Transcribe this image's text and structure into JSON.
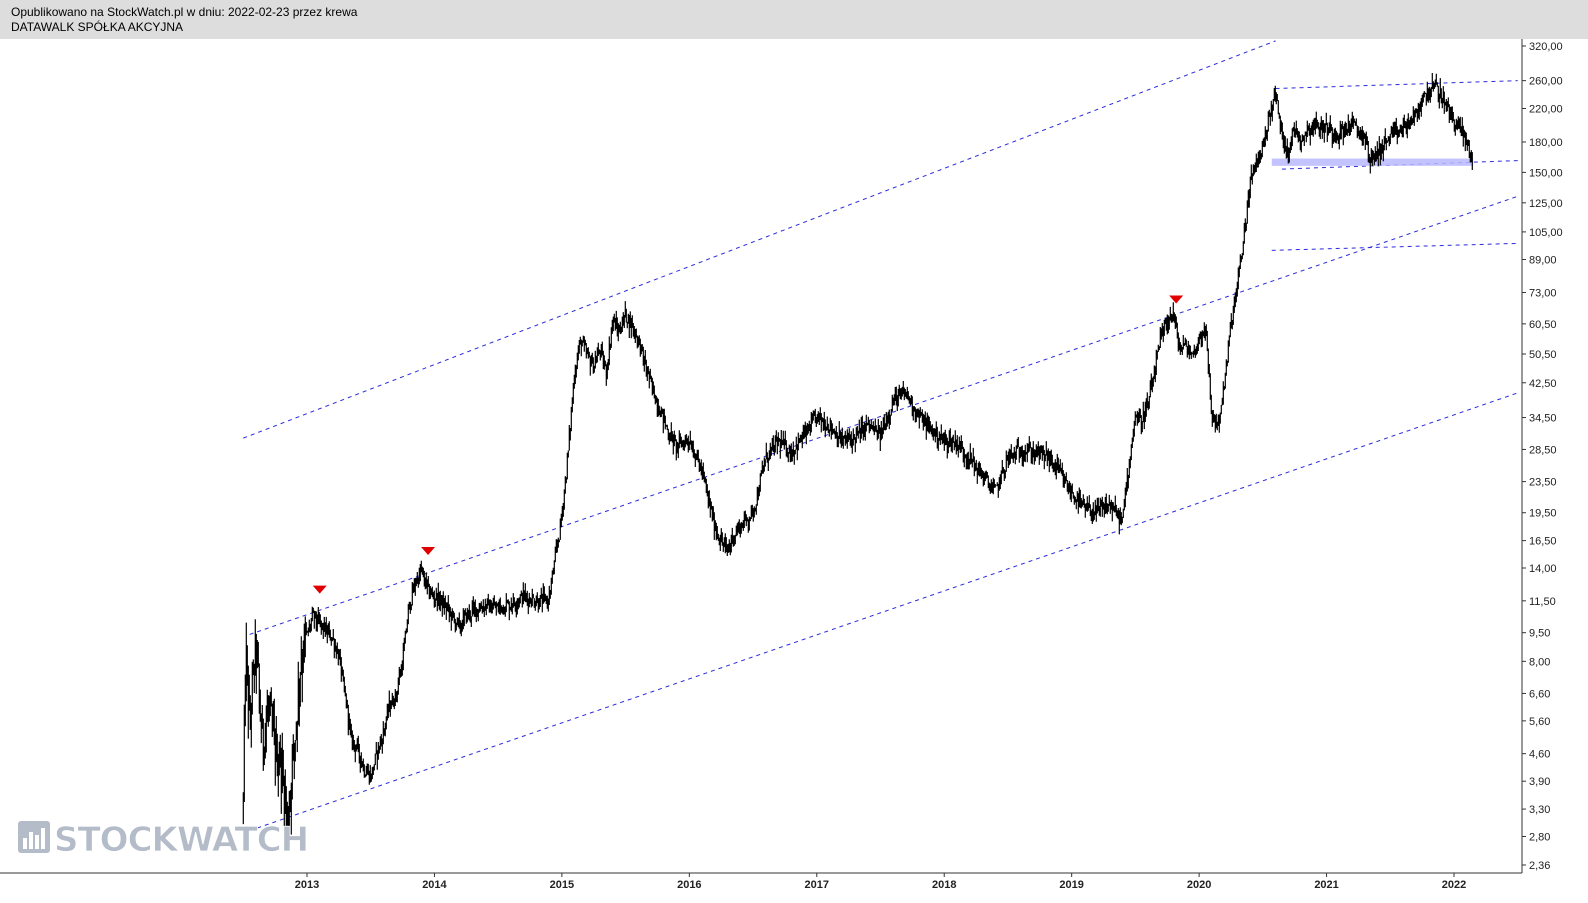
{
  "header": {
    "published_line": "Opublikowano na StockWatch.pl w dniu: 2022-02-23 przez krewa",
    "instrument_line": "DATAWALK SPÓŁKA AKCYJNA"
  },
  "watermark": {
    "text": "STOCKWATCH"
  },
  "colors": {
    "price": "#000000",
    "trendline": "#2b2bdc",
    "marker": "#e00000",
    "support_zone": "#b8b8ff",
    "header_bg": "#dddddd",
    "watermark": "#b3bcc8"
  },
  "chart_data": {
    "type": "line",
    "scale": "log",
    "ylim": [
      2.2,
      340
    ],
    "xlim": [
      2012.15,
      2022.55
    ],
    "y_ticks": [
      "320,00",
      "260,00",
      "220,00",
      "180,00",
      "150,00",
      "125,00",
      "105,00",
      "89,00",
      "73,00",
      "60,50",
      "50,50",
      "42,50",
      "34,50",
      "28,50",
      "23,50",
      "19,50",
      "16,50",
      "14,00",
      "11,50",
      "9,50",
      "8,00",
      "6,60",
      "5,60",
      "4,60",
      "3,90",
      "3,30",
      "2,80",
      "2,36"
    ],
    "x_ticks": [
      "2013",
      "2014",
      "2015",
      "2016",
      "2017",
      "2018",
      "2019",
      "2020",
      "2021",
      "2022"
    ],
    "series": [
      {
        "x": [
          2012.5,
          2012.52,
          2012.55,
          2012.6,
          2012.65,
          2012.7,
          2012.75,
          2012.8,
          2012.85,
          2012.9,
          2012.95,
          2013.0,
          2013.05,
          2013.1,
          2013.15,
          2013.2,
          2013.25,
          2013.3,
          2013.35,
          2013.4,
          2013.45,
          2013.5,
          2013.55,
          2013.6,
          2013.65,
          2013.7,
          2013.75,
          2013.8,
          2013.85,
          2013.9,
          2013.95,
          2014.0,
          2014.05,
          2014.1,
          2014.15,
          2014.2,
          2014.25,
          2014.3,
          2014.35,
          2014.4,
          2014.5,
          2014.6,
          2014.7,
          2014.8,
          2014.9,
          2015.0,
          2015.05,
          2015.1,
          2015.15,
          2015.2,
          2015.25,
          2015.3,
          2015.35,
          2015.4,
          2015.45,
          2015.5,
          2015.55,
          2015.6,
          2015.65,
          2015.7,
          2015.75,
          2015.8,
          2015.85,
          2015.9,
          2016.0,
          2016.1,
          2016.2,
          2016.25,
          2016.3,
          2016.35,
          2016.4,
          2016.5,
          2016.6,
          2016.7,
          2016.8,
          2016.9,
          2017.0,
          2017.1,
          2017.2,
          2017.3,
          2017.4,
          2017.5,
          2017.6,
          2017.7,
          2017.8,
          2017.9,
          2018.0,
          2018.1,
          2018.2,
          2018.3,
          2018.4,
          2018.5,
          2018.6,
          2018.7,
          2018.8,
          2018.9,
          2019.0,
          2019.1,
          2019.2,
          2019.3,
          2019.4,
          2019.45,
          2019.5,
          2019.55,
          2019.6,
          2019.65,
          2019.7,
          2019.75,
          2019.8,
          2019.85,
          2019.9,
          2019.95,
          2020.0,
          2020.05,
          2020.1,
          2020.15,
          2020.2,
          2020.25,
          2020.3,
          2020.35,
          2020.4,
          2020.45,
          2020.5,
          2020.55,
          2020.6,
          2020.65,
          2020.7,
          2020.75,
          2020.8,
          2020.9,
          2021.0,
          2021.1,
          2021.2,
          2021.3,
          2021.35,
          2021.4,
          2021.5,
          2021.6,
          2021.7,
          2021.75,
          2021.8,
          2021.85,
          2021.9,
          2021.95,
          2022.0,
          2022.05,
          2022.1,
          2022.15
        ],
        "y": [
          3.3,
          8.5,
          5.5,
          8.8,
          5.0,
          6.0,
          4.8,
          4.3,
          3.1,
          4.8,
          8.0,
          9.3,
          10.5,
          10.0,
          9.6,
          9.2,
          8.3,
          6.5,
          5.0,
          4.7,
          4.2,
          4.0,
          4.6,
          5.2,
          6.2,
          6.5,
          8.0,
          11.0,
          12.8,
          13.8,
          12.2,
          11.8,
          11.5,
          11.0,
          10.3,
          9.8,
          10.5,
          10.8,
          11.0,
          11.2,
          11.0,
          11.3,
          11.8,
          11.5,
          11.6,
          19.0,
          28.0,
          45.0,
          55.0,
          50.0,
          47.0,
          52.0,
          45.0,
          62.0,
          58.0,
          64.0,
          60.0,
          55.0,
          48.0,
          42.0,
          38.0,
          34.0,
          31.0,
          29.0,
          30.5,
          25.0,
          18.0,
          16.5,
          15.5,
          17.0,
          18.0,
          19.5,
          27.0,
          30.0,
          28.0,
          31.0,
          34.5,
          33.0,
          30.0,
          30.5,
          33.0,
          31.0,
          38.0,
          40.0,
          35.0,
          32.0,
          30.0,
          29.5,
          27.0,
          24.5,
          22.0,
          27.0,
          28.5,
          28.0,
          27.5,
          25.0,
          22.0,
          20.0,
          19.5,
          20.5,
          18.5,
          26.0,
          35.0,
          34.0,
          37.0,
          45.0,
          55.0,
          62.0,
          64.0,
          52.0,
          53.0,
          50.0,
          55.0,
          60.0,
          35.0,
          33.0,
          42.0,
          60.0,
          75.0,
          100.0,
          140.0,
          160.0,
          175.0,
          210.0,
          240.0,
          190.0,
          170.0,
          195.0,
          185.0,
          200.0,
          195.0,
          190.0,
          200.0,
          185.0,
          160.0,
          170.0,
          185.0,
          195.0,
          210.0,
          230.0,
          245.0,
          250.0,
          240.0,
          220.0,
          205.0,
          195.0,
          180.0,
          160.0
        ]
      }
    ],
    "markers": [
      {
        "type": "triangle-down",
        "x": 2013.1,
        "y": 12.3
      },
      {
        "type": "triangle-down",
        "x": 2013.95,
        "y": 15.5
      },
      {
        "type": "triangle-down",
        "x": 2019.82,
        "y": 70.0
      }
    ],
    "trendlines": [
      {
        "points": [
          [
            2012.5,
            30.5
          ],
          [
            2020.6,
            330
          ]
        ]
      },
      {
        "points": [
          [
            2012.55,
            9.4
          ],
          [
            2022.5,
            130
          ]
        ]
      },
      {
        "points": [
          [
            2012.55,
            2.9
          ],
          [
            2022.5,
            40
          ]
        ]
      },
      {
        "points": [
          [
            2020.6,
            248
          ],
          [
            2022.5,
            260
          ]
        ]
      },
      {
        "points": [
          [
            2020.65,
            153
          ],
          [
            2022.5,
            161
          ]
        ]
      },
      {
        "points": [
          [
            2020.57,
            94
          ],
          [
            2022.5,
            98
          ]
        ]
      }
    ],
    "support_zone": {
      "x": [
        2020.57,
        2022.15
      ],
      "y": [
        156,
        163
      ]
    }
  }
}
